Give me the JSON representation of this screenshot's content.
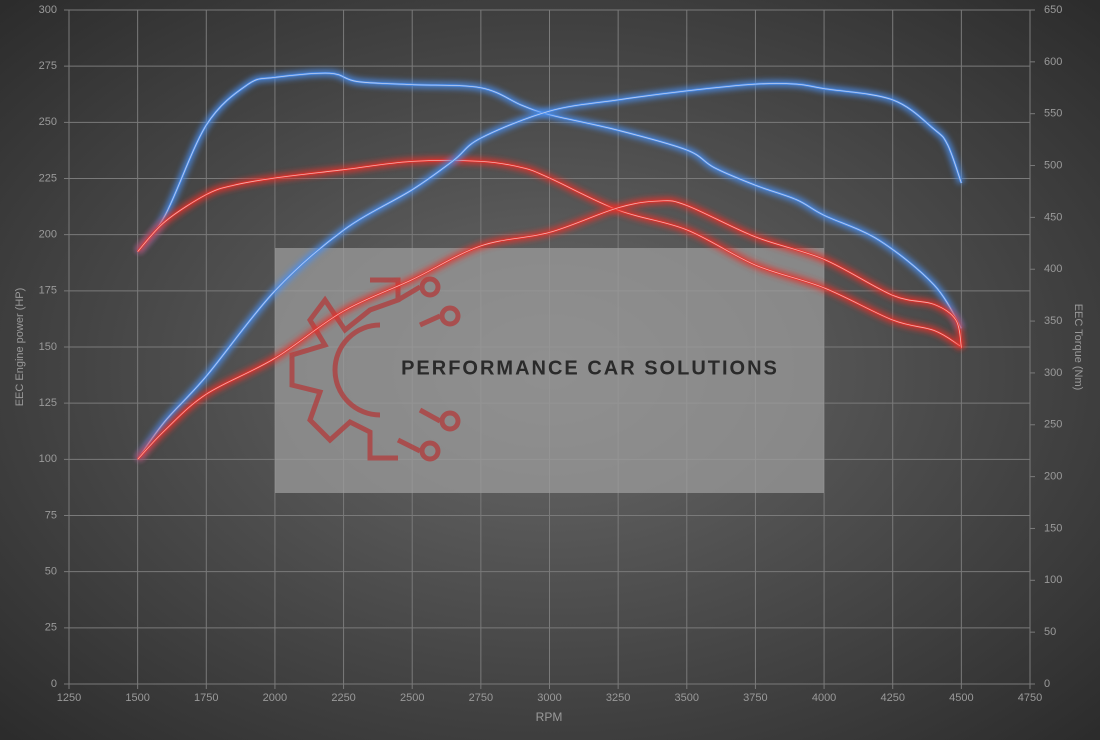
{
  "chart_data": {
    "type": "line",
    "xlabel": "RPM",
    "ylabel": "EEC Engine power (HP)",
    "y2label": "EEC Torque (Nm)",
    "watermark": "PERFORMANCE CAR SOLUTIONS",
    "xlim": [
      1250,
      4750
    ],
    "xticks": [
      1250,
      1500,
      1750,
      2000,
      2250,
      2500,
      2750,
      3000,
      3250,
      3500,
      3750,
      4000,
      4250,
      4500,
      4750
    ],
    "ylim": [
      0,
      300
    ],
    "yticks": [
      0,
      25,
      50,
      75,
      100,
      125,
      150,
      175,
      200,
      225,
      250,
      275,
      300
    ],
    "y2lim": [
      0,
      650
    ],
    "y2ticks": [
      0,
      50,
      100,
      150,
      200,
      250,
      300,
      350,
      400,
      450,
      500,
      550,
      600,
      650
    ],
    "grid": true,
    "series": [
      {
        "color": "#4a8ff0",
        "axis": "y2",
        "x": [
          1500,
          1600,
          1750,
          1900,
          2000,
          2200,
          2300,
          2500,
          2750,
          2900,
          3000,
          3250,
          3500,
          3600,
          3750,
          3900,
          4000,
          4200,
          4400,
          4500
        ],
        "values": [
          417,
          452,
          539,
          578,
          585,
          589,
          581,
          578,
          575,
          558,
          549,
          534,
          515,
          498,
          481,
          467,
          452,
          428,
          385,
          343
        ]
      },
      {
        "color": "#e8302a",
        "axis": "y2",
        "x": [
          1500,
          1600,
          1750,
          1850,
          2000,
          2250,
          2500,
          2750,
          2900,
          3000,
          3250,
          3500,
          3750,
          4000,
          4250,
          4400,
          4490,
          4500
        ],
        "values": [
          417,
          446,
          472,
          481,
          488,
          496,
          504,
          504,
          498,
          488,
          457,
          438,
          404,
          382,
          351,
          341,
          327,
          324
        ]
      },
      {
        "color": "#4a8ff0",
        "x": [
          1500,
          1600,
          1750,
          2000,
          2250,
          2500,
          2650,
          2750,
          3000,
          3250,
          3500,
          3750,
          3900,
          4000,
          4250,
          4400,
          4450,
          4500
        ],
        "values": [
          100,
          117,
          137,
          175,
          202,
          220,
          233,
          243,
          255,
          260,
          264,
          267,
          267,
          265,
          260,
          247,
          240,
          223
        ]
      },
      {
        "color": "#e8302a",
        "x": [
          1500,
          1600,
          1750,
          2000,
          2250,
          2500,
          2750,
          3000,
          3250,
          3400,
          3500,
          3750,
          4000,
          4250,
          4400,
          4480,
          4500
        ],
        "values": [
          100,
          113,
          129,
          145,
          166,
          180,
          195,
          201,
          212,
          215,
          213,
          199,
          189,
          173,
          169,
          162,
          150
        ]
      }
    ]
  }
}
